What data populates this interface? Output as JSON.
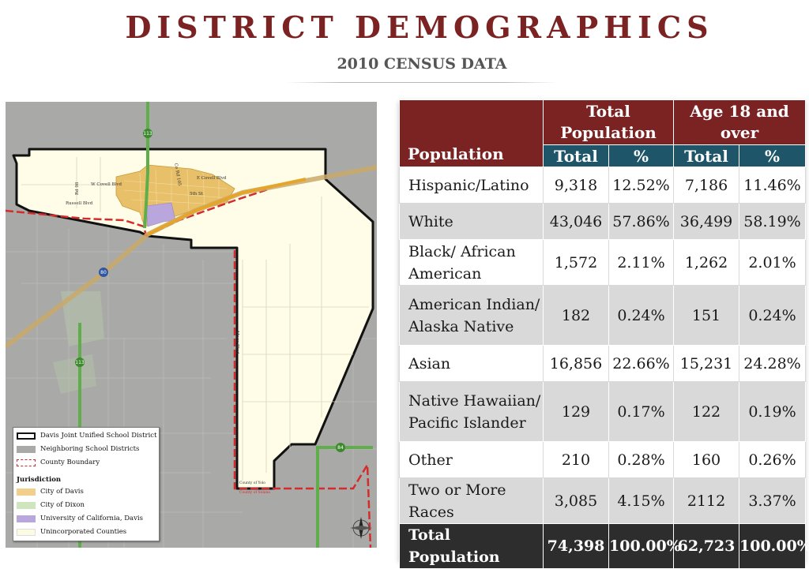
{
  "page": {
    "title": "DISTRICT DEMOGRAPHICS",
    "subtitle": "2010 CENSUS DATA"
  },
  "colors": {
    "title": "#7b2323",
    "header_maroon": "#7b2323",
    "header_teal": "#1f5569",
    "row_alt": "#d9d9d9",
    "total_row": "#2d2d2d",
    "district_fill": "#fffde8",
    "city_of_davis": "#e8c06a",
    "city_of_dixon": "#c7dfb3",
    "uc_davis": "#b9a6dc",
    "county_boundary": "#d42c2c",
    "highway": "#e4a52a"
  },
  "map": {
    "legend": {
      "items": [
        {
          "label": "Davis Joint Unified School District",
          "icon": "black-outline-swatch"
        },
        {
          "label": "Neighboring School Districts",
          "icon": "gray-swatch"
        },
        {
          "label": "County Boundary",
          "icon": "red-dashed-swatch"
        }
      ],
      "jurisdiction_heading": "Jurisdiction",
      "jurisdictions": [
        {
          "label": "City of Davis",
          "color": "#f2cf8a"
        },
        {
          "label": "City of Dixon",
          "color": "#cfe5bd"
        },
        {
          "label": "University of California, Davis",
          "color": "#b9a6dc"
        },
        {
          "label": "Unincorporated Counties",
          "color": "#fcfbe3"
        }
      ]
    },
    "shields": [
      "113",
      "80",
      "113",
      "84"
    ],
    "road_labels": [
      "W Covell Blvd",
      "Russell Blvd",
      "Rd 98",
      "5th St",
      "E Covell Blvd",
      "Co Rd 105",
      "Mace Blvd",
      "County of Yolo",
      "County of Solano"
    ],
    "compass_icon": "compass-rose-icon"
  },
  "table": {
    "header": {
      "population": "Population",
      "total_population_group": "Total Population",
      "age18_group": "Age 18 and over",
      "total": "Total",
      "percent": "%"
    },
    "rows": [
      {
        "label": "Hispanic/Latino",
        "total": "9,318",
        "pct": "12.52%",
        "adult_total": "7,186",
        "adult_pct": "11.46%"
      },
      {
        "label": "White",
        "total": "43,046",
        "pct": "57.86%",
        "adult_total": "36,499",
        "adult_pct": "58.19%"
      },
      {
        "label": "Black/ African American",
        "total": "1,572",
        "pct": "2.11%",
        "adult_total": "1,262",
        "adult_pct": "2.01%"
      },
      {
        "label": "American Indian/ Alaska Native",
        "total": "182",
        "pct": "0.24%",
        "adult_total": "151",
        "adult_pct": "0.24%"
      },
      {
        "label": "Asian",
        "total": "16,856",
        "pct": "22.66%",
        "adult_total": "15,231",
        "adult_pct": "24.28%"
      },
      {
        "label": "Native Hawaiian/ Pacific Islander",
        "total": "129",
        "pct": "0.17%",
        "adult_total": "122",
        "adult_pct": "0.19%"
      },
      {
        "label": "Other",
        "total": "210",
        "pct": "0.28%",
        "adult_total": "160",
        "adult_pct": "0.26%"
      },
      {
        "label": "Two or More Races",
        "total": "3,085",
        "pct": "4.15%",
        "adult_total": "2112",
        "adult_pct": "3.37%"
      }
    ],
    "total_row": {
      "label": "Total Population",
      "total": "74,398",
      "pct": "100.00%",
      "adult_total": "62,723",
      "adult_pct": "100.00%"
    }
  }
}
